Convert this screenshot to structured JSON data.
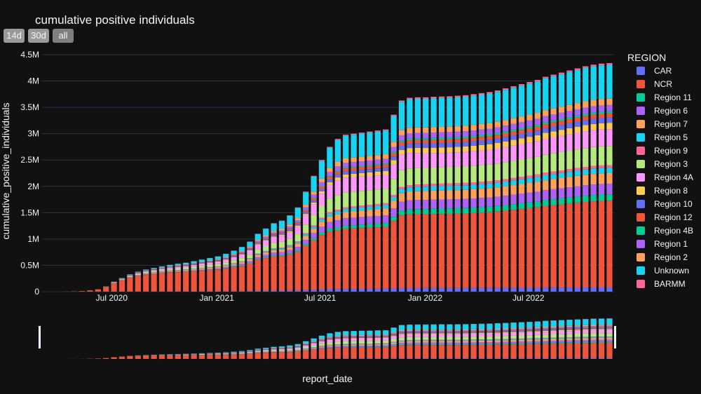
{
  "title": "cumulative positive individuals",
  "range_buttons": {
    "b14d": "14d",
    "b30d": "30d",
    "ball": "all"
  },
  "colors": {
    "background": "#111111",
    "grid": "#283442",
    "text": "#f2f5fa",
    "button": "#9a9a9a"
  },
  "chart_data": {
    "type": "bar",
    "stacked": true,
    "title": "cumulative positive individuals",
    "xlabel": "report_date",
    "ylabel": "cumulative_positive_individuals",
    "ylim": [
      0,
      4500000
    ],
    "y_ticks": [
      {
        "value": 0,
        "label": "0"
      },
      {
        "value": 500000,
        "label": "0.5M"
      },
      {
        "value": 1000000,
        "label": "1M"
      },
      {
        "value": 1500000,
        "label": "1.5M"
      },
      {
        "value": 2000000,
        "label": "2M"
      },
      {
        "value": 2500000,
        "label": "2.5M"
      },
      {
        "value": 3000000,
        "label": "3M"
      },
      {
        "value": 3500000,
        "label": "3.5M"
      },
      {
        "value": 4000000,
        "label": "4M"
      },
      {
        "value": 4500000,
        "label": "4.5M"
      }
    ],
    "x_ticks": [
      "Jul 2020",
      "Jan 2021",
      "Jul 2021",
      "Jan 2022",
      "Jul 2022"
    ],
    "x_tick_dates": [
      "2020-07-01",
      "2021-01-01",
      "2021-07-01",
      "2022-01-01",
      "2022-07-01"
    ],
    "x_range": [
      "2020-03-01",
      "2022-11-28"
    ],
    "grid": true,
    "legend_title": "REGION",
    "legend_position": "right",
    "range_slider": true,
    "dates": [
      "2020-03-15",
      "2020-03-29",
      "2020-04-12",
      "2020-04-26",
      "2020-05-10",
      "2020-05-24",
      "2020-06-07",
      "2020-06-21",
      "2020-07-05",
      "2020-07-19",
      "2020-08-02",
      "2020-08-16",
      "2020-08-30",
      "2020-09-13",
      "2020-09-27",
      "2020-10-11",
      "2020-10-25",
      "2020-11-08",
      "2020-11-22",
      "2020-12-06",
      "2020-12-20",
      "2021-01-03",
      "2021-01-17",
      "2021-01-31",
      "2021-02-14",
      "2021-02-28",
      "2021-03-14",
      "2021-03-28",
      "2021-04-11",
      "2021-04-25",
      "2021-05-09",
      "2021-05-23",
      "2021-06-06",
      "2021-06-20",
      "2021-07-04",
      "2021-07-18",
      "2021-08-01",
      "2021-08-15",
      "2021-08-29",
      "2021-09-12",
      "2021-09-26",
      "2021-10-10",
      "2021-10-24",
      "2021-11-07",
      "2021-11-21",
      "2021-12-05",
      "2021-12-19",
      "2022-01-02",
      "2022-01-16",
      "2022-01-30",
      "2022-02-13",
      "2022-02-27",
      "2022-03-13",
      "2022-03-27",
      "2022-04-10",
      "2022-04-24",
      "2022-05-08",
      "2022-05-22",
      "2022-06-05",
      "2022-06-19",
      "2022-07-03",
      "2022-07-17",
      "2022-07-31",
      "2022-08-14",
      "2022-08-28",
      "2022-09-11",
      "2022-09-25",
      "2022-10-09",
      "2022-10-23",
      "2022-11-06",
      "2022-11-20"
    ],
    "totals": [
      0,
      0,
      2000,
      6000,
      12000,
      25000,
      45000,
      100000,
      190000,
      260000,
      330000,
      380000,
      420000,
      450000,
      480000,
      510000,
      530000,
      550000,
      580000,
      610000,
      640000,
      670000,
      720000,
      780000,
      850000,
      950000,
      1100000,
      1200000,
      1300000,
      1350000,
      1450000,
      1600000,
      1900000,
      2200000,
      2500000,
      2750000,
      2900000,
      2980000,
      3000000,
      3020000,
      3040000,
      3060000,
      3080000,
      3360000,
      3630000,
      3680000,
      3690000,
      3690000,
      3700000,
      3705000,
      3710000,
      3720000,
      3730000,
      3750000,
      3770000,
      3790000,
      3820000,
      3860000,
      3900000,
      3940000,
      3980000,
      4020000,
      4080000,
      4120000,
      4160000,
      4200000,
      4240000,
      4280000,
      4310000,
      4330000,
      4340000
    ],
    "series_names": [
      "CAR",
      "NCR",
      "Region 11",
      "Region 6",
      "Region 7",
      "Region 5",
      "Region 9",
      "Region 3",
      "Region 4A",
      "Region 8",
      "Region 10",
      "Region 12",
      "Region 4B",
      "Region 1",
      "Region 2",
      "Unknown",
      "BARMM"
    ],
    "shares_phase1": [
      0.005,
      0.85,
      0.005,
      0.01,
      0.03,
      0.005,
      0.005,
      0.03,
      0.03,
      0.005,
      0.005,
      0.005,
      0.002,
      0.005,
      0.005,
      0.001,
      0.002
    ],
    "shares_phase2": [
      0.018,
      0.4,
      0.02,
      0.05,
      0.04,
      0.02,
      0.012,
      0.1,
      0.1,
      0.02,
      0.02,
      0.02,
      0.006,
      0.03,
      0.03,
      0.15,
      0.007
    ],
    "shares_phase3": [
      0.02,
      0.41,
      0.03,
      0.05,
      0.05,
      0.025,
      0.013,
      0.09,
      0.08,
      0.03,
      0.024,
      0.02,
      0.01,
      0.03,
      0.03,
      0.16,
      0.008
    ]
  },
  "legend": {
    "title": "REGION",
    "items": [
      {
        "label": "CAR",
        "color": "#636efa"
      },
      {
        "label": "NCR",
        "color": "#ef553b"
      },
      {
        "label": "Region 11",
        "color": "#00cc96"
      },
      {
        "label": "Region 6",
        "color": "#ab63fa"
      },
      {
        "label": "Region 7",
        "color": "#ffa15a"
      },
      {
        "label": "Region 5",
        "color": "#19d3f3"
      },
      {
        "label": "Region 9",
        "color": "#ff6692"
      },
      {
        "label": "Region 3",
        "color": "#b6e880"
      },
      {
        "label": "Region 4A",
        "color": "#ff97ff"
      },
      {
        "label": "Region 8",
        "color": "#fecb52"
      },
      {
        "label": "Region 10",
        "color": "#636efa"
      },
      {
        "label": "Region 12",
        "color": "#ef553b"
      },
      {
        "label": "Region 4B",
        "color": "#00cc96"
      },
      {
        "label": "Region 1",
        "color": "#ab63fa"
      },
      {
        "label": "Region 2",
        "color": "#ffa15a"
      },
      {
        "label": "Unknown",
        "color": "#19d3f3"
      },
      {
        "label": "BARMM",
        "color": "#ff6692"
      }
    ]
  }
}
